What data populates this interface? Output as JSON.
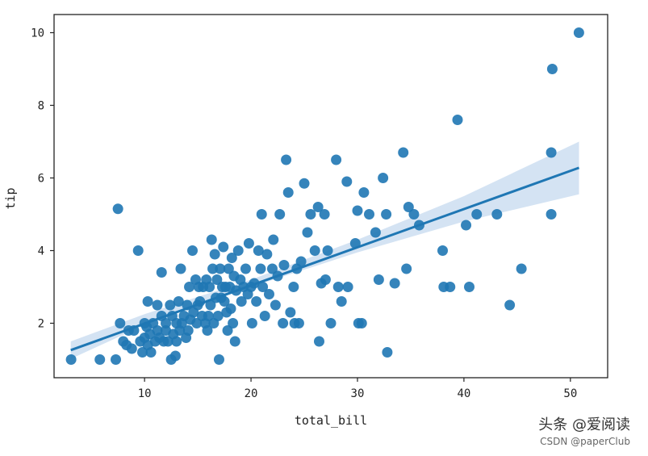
{
  "watermark": {
    "line1": "头条 @爱阅读",
    "line2": "CSDN @paperClub"
  },
  "chart_data": {
    "type": "scatter",
    "title": "",
    "xlabel": "total_bill",
    "ylabel": "tip",
    "xlim": [
      1.5,
      53.5
    ],
    "ylim": [
      0.5,
      10.5
    ],
    "xticks": [
      10,
      20,
      30,
      40,
      50
    ],
    "yticks": [
      2,
      4,
      6,
      8,
      10
    ],
    "xtick_labels": [
      "10",
      "20",
      "30",
      "40",
      "50"
    ],
    "ytick_labels": [
      "2",
      "4",
      "6",
      "8",
      "10"
    ],
    "grid": false,
    "colors": {
      "points": "#1f77b4",
      "line": "#1f77b4",
      "band": "#c6d9ef"
    },
    "regression": {
      "x": [
        3.07,
        50.81
      ],
      "y": [
        1.26,
        6.28
      ]
    },
    "confidence_band": {
      "x": [
        3.07,
        10,
        20,
        30,
        40,
        50.81
      ],
      "lower": [
        1.02,
        1.95,
        3.0,
        3.95,
        4.8,
        5.55
      ],
      "upper": [
        1.5,
        2.25,
        3.2,
        4.3,
        5.5,
        7.0
      ]
    },
    "points": [
      [
        3.1,
        1.0
      ],
      [
        5.8,
        1.0
      ],
      [
        7.3,
        1.0
      ],
      [
        7.5,
        5.15
      ],
      [
        7.7,
        2.0
      ],
      [
        8.0,
        1.5
      ],
      [
        8.3,
        1.4
      ],
      [
        8.5,
        1.8
      ],
      [
        8.8,
        1.3
      ],
      [
        9.0,
        1.8
      ],
      [
        9.4,
        4.0
      ],
      [
        9.6,
        1.5
      ],
      [
        9.8,
        1.2
      ],
      [
        10.0,
        1.6
      ],
      [
        10.0,
        2.0
      ],
      [
        10.2,
        1.9
      ],
      [
        10.3,
        1.4
      ],
      [
        10.3,
        2.6
      ],
      [
        10.5,
        1.7
      ],
      [
        10.6,
        1.2
      ],
      [
        10.8,
        2.0
      ],
      [
        11.0,
        1.5
      ],
      [
        11.2,
        2.5
      ],
      [
        11.2,
        1.8
      ],
      [
        11.4,
        1.6
      ],
      [
        11.6,
        2.2
      ],
      [
        11.6,
        3.4
      ],
      [
        11.8,
        1.5
      ],
      [
        12.0,
        2.0
      ],
      [
        12.0,
        1.8
      ],
      [
        12.2,
        1.5
      ],
      [
        12.4,
        2.5
      ],
      [
        12.5,
        1.0
      ],
      [
        12.6,
        2.2
      ],
      [
        12.7,
        1.7
      ],
      [
        12.9,
        1.1
      ],
      [
        13.0,
        2.0
      ],
      [
        13.0,
        1.5
      ],
      [
        13.2,
        2.6
      ],
      [
        13.3,
        1.8
      ],
      [
        13.4,
        3.5
      ],
      [
        13.5,
        2.0
      ],
      [
        13.7,
        2.2
      ],
      [
        13.9,
        1.6
      ],
      [
        14.0,
        2.5
      ],
      [
        14.1,
        1.8
      ],
      [
        14.2,
        3.0
      ],
      [
        14.3,
        2.1
      ],
      [
        14.5,
        4.0
      ],
      [
        14.6,
        2.3
      ],
      [
        14.8,
        3.2
      ],
      [
        14.9,
        2.0
      ],
      [
        15.0,
        2.5
      ],
      [
        15.1,
        3.0
      ],
      [
        15.2,
        2.6
      ],
      [
        15.4,
        2.2
      ],
      [
        15.5,
        3.0
      ],
      [
        15.7,
        2.0
      ],
      [
        15.8,
        3.2
      ],
      [
        15.9,
        1.8
      ],
      [
        16.0,
        2.2
      ],
      [
        16.1,
        3.0
      ],
      [
        16.2,
        2.5
      ],
      [
        16.3,
        4.3
      ],
      [
        16.4,
        3.5
      ],
      [
        16.5,
        2.0
      ],
      [
        16.6,
        3.9
      ],
      [
        16.7,
        2.7
      ],
      [
        16.8,
        3.2
      ],
      [
        16.9,
        2.2
      ],
      [
        17.0,
        1.0
      ],
      [
        17.1,
        3.5
      ],
      [
        17.2,
        2.7
      ],
      [
        17.3,
        3.0
      ],
      [
        17.4,
        4.1
      ],
      [
        17.5,
        2.6
      ],
      [
        17.6,
        3.0
      ],
      [
        17.7,
        2.3
      ],
      [
        17.8,
        1.8
      ],
      [
        17.9,
        3.5
      ],
      [
        18.0,
        3.0
      ],
      [
        18.1,
        2.4
      ],
      [
        18.2,
        3.8
      ],
      [
        18.3,
        2.0
      ],
      [
        18.4,
        3.3
      ],
      [
        18.5,
        1.5
      ],
      [
        18.6,
        2.9
      ],
      [
        18.8,
        4.0
      ],
      [
        19.0,
        3.2
      ],
      [
        19.1,
        2.6
      ],
      [
        19.3,
        3.0
      ],
      [
        19.5,
        3.5
      ],
      [
        19.7,
        2.8
      ],
      [
        19.8,
        4.2
      ],
      [
        20.0,
        3.0
      ],
      [
        20.1,
        2.0
      ],
      [
        20.3,
        3.1
      ],
      [
        20.5,
        2.6
      ],
      [
        20.7,
        4.0
      ],
      [
        20.9,
        3.5
      ],
      [
        21.0,
        5.0
      ],
      [
        21.1,
        3.0
      ],
      [
        21.3,
        2.2
      ],
      [
        21.5,
        3.9
      ],
      [
        21.7,
        2.8
      ],
      [
        22.0,
        3.5
      ],
      [
        22.1,
        4.3
      ],
      [
        22.3,
        2.5
      ],
      [
        22.5,
        3.3
      ],
      [
        22.7,
        5.0
      ],
      [
        23.0,
        2.0
      ],
      [
        23.1,
        3.6
      ],
      [
        23.3,
        6.5
      ],
      [
        23.5,
        5.6
      ],
      [
        23.7,
        2.3
      ],
      [
        24.0,
        3.0
      ],
      [
        24.1,
        2.0
      ],
      [
        24.3,
        3.5
      ],
      [
        24.5,
        2.0
      ],
      [
        24.7,
        3.7
      ],
      [
        25.0,
        5.85
      ],
      [
        25.3,
        4.5
      ],
      [
        25.6,
        5.0
      ],
      [
        26.0,
        4.0
      ],
      [
        26.3,
        5.2
      ],
      [
        26.4,
        1.5
      ],
      [
        26.6,
        3.1
      ],
      [
        26.9,
        5.0
      ],
      [
        27.0,
        3.2
      ],
      [
        27.2,
        4.0
      ],
      [
        27.5,
        2.0
      ],
      [
        28.0,
        6.5
      ],
      [
        28.2,
        3.0
      ],
      [
        28.5,
        2.6
      ],
      [
        29.0,
        5.9
      ],
      [
        29.1,
        3.0
      ],
      [
        29.8,
        4.2
      ],
      [
        30.0,
        5.1
      ],
      [
        30.1,
        2.0
      ],
      [
        30.4,
        2.0
      ],
      [
        30.6,
        5.6
      ],
      [
        31.1,
        5.0
      ],
      [
        31.7,
        4.5
      ],
      [
        32.0,
        3.2
      ],
      [
        32.4,
        6.0
      ],
      [
        32.7,
        5.0
      ],
      [
        32.8,
        1.2
      ],
      [
        33.5,
        3.1
      ],
      [
        34.3,
        6.7
      ],
      [
        34.6,
        3.5
      ],
      [
        34.8,
        5.2
      ],
      [
        35.3,
        5.0
      ],
      [
        35.8,
        4.7
      ],
      [
        38.0,
        4.0
      ],
      [
        38.1,
        3.0
      ],
      [
        38.7,
        3.0
      ],
      [
        39.4,
        7.6
      ],
      [
        40.2,
        4.7
      ],
      [
        40.5,
        3.0
      ],
      [
        41.2,
        5.0
      ],
      [
        43.1,
        5.0
      ],
      [
        44.3,
        2.5
      ],
      [
        45.4,
        3.5
      ],
      [
        48.2,
        5.0
      ],
      [
        48.2,
        6.7
      ],
      [
        48.3,
        9.0
      ],
      [
        50.8,
        10.0
      ]
    ]
  }
}
